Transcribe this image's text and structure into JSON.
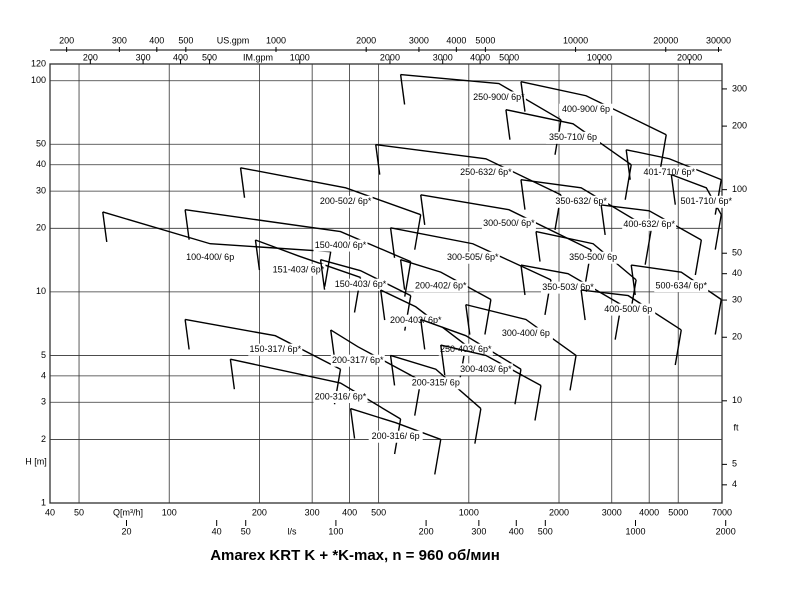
{
  "chart_data": {
    "type": "pump-range",
    "title": "Amarex KRT K + *K-max, n = 960 об/мин",
    "xlabel": "Q[m³/h]",
    "ylabel": "H [m]",
    "log_x": true,
    "log_y": true,
    "grid": true,
    "color": "#000000",
    "xlim": [
      40,
      7000
    ],
    "xticks": [
      40,
      50,
      100,
      200,
      300,
      400,
      500,
      1000,
      2000,
      3000,
      4000,
      5000,
      7000
    ],
    "ylim": [
      1,
      120
    ],
    "yticks": [
      1,
      2,
      3,
      4,
      5,
      10,
      20,
      30,
      40,
      50,
      100,
      120
    ],
    "secondary_axes": [
      {
        "label": "l/s",
        "side": "bottom",
        "lim": [
          11.11,
          1944
        ],
        "ticks": [
          20,
          40,
          50,
          100,
          200,
          300,
          400,
          500,
          1000,
          2000
        ]
      },
      {
        "label": "US.gpm",
        "side": "top",
        "lim": [
          176,
          30820
        ],
        "ticks": [
          200,
          300,
          400,
          500,
          1000,
          2000,
          3000,
          4000,
          5000,
          10000,
          20000,
          30000
        ]
      },
      {
        "label": "IM.gpm",
        "side": "top",
        "lim": [
          146.7,
          25660
        ],
        "ticks": [
          200,
          300,
          400,
          500,
          1000,
          2000,
          3000,
          4000,
          5000,
          10000,
          20000
        ]
      },
      {
        "label": "ft",
        "side": "right",
        "lim": [
          3.281,
          393.7
        ],
        "ticks": [
          4,
          5,
          10,
          20,
          30,
          40,
          50,
          100,
          200,
          300
        ]
      }
    ],
    "series": [
      {
        "name": "100-400/ 6p",
        "x": [
          60,
          137,
          346
        ],
        "values": [
          23.9,
          16.9,
          15.5
        ]
      },
      {
        "name": "150-400/ 6p*",
        "x": [
          113,
          373,
          640
        ],
        "values": [
          24.5,
          19.3,
          13.9
        ]
      },
      {
        "name": "200-502/ 6p*",
        "x": [
          173,
          388,
          691
        ],
        "values": [
          38.7,
          31.1,
          23.2
        ]
      },
      {
        "name": "151-403/ 6p*",
        "x": [
          194,
          270,
          435
        ],
        "values": [
          17.6,
          14.8,
          11.7
        ]
      },
      {
        "name": "150-403/ 6p*",
        "x": [
          320,
          435,
          640
        ],
        "values": [
          14.2,
          12.6,
          9.6
        ]
      },
      {
        "name": "150-317/ 6p*",
        "x": [
          113,
          226,
          373
        ],
        "values": [
          7.4,
          6.2,
          4.3
        ]
      },
      {
        "name": "200-317/ 6p*",
        "x": [
          346,
          426,
          691
        ],
        "values": [
          6.6,
          5.5,
          3.8
        ]
      },
      {
        "name": "200-316/ 6p*",
        "x": [
          160,
          373,
          592
        ],
        "values": [
          4.8,
          3.7,
          2.5
        ]
      },
      {
        "name": "200-316/ 6p",
        "x": [
          403,
          570,
          806
        ],
        "values": [
          2.8,
          2.4,
          2.0
        ]
      },
      {
        "name": "200-403/ 6p*",
        "x": [
          508,
          665,
          977
        ],
        "values": [
          10.2,
          8.5,
          5.6
        ]
      },
      {
        "name": "200-402/ 6p*",
        "x": [
          592,
          806,
          1185
        ],
        "values": [
          14.2,
          12.4,
          9.2
        ]
      },
      {
        "name": "200-315/ 6p",
        "x": [
          548,
          776,
          1097
        ],
        "values": [
          5.0,
          4.3,
          2.8
        ]
      },
      {
        "name": "250-403/ 6p*",
        "x": [
          691,
          977,
          1493
        ],
        "values": [
          7.4,
          6.2,
          4.3
        ]
      },
      {
        "name": "300-403/ 6p*",
        "x": [
          806,
          1140,
          1741
        ],
        "values": [
          5.6,
          5.0,
          3.6
        ]
      },
      {
        "name": "300-505/ 6p*",
        "x": [
          548,
          1031,
          1880
        ],
        "values": [
          20.1,
          16.9,
          11.4
        ]
      },
      {
        "name": "300-400/ 6p",
        "x": [
          977,
          1551,
          2280
        ],
        "values": [
          8.7,
          7.4,
          5.0
        ]
      },
      {
        "name": "300-500/ 6p*",
        "x": [
          691,
          1361,
          2560
        ],
        "values": [
          28.8,
          24.5,
          15.8
        ]
      },
      {
        "name": "250-632/ 6p*",
        "x": [
          489,
          1140,
          2031
        ],
        "values": [
          49.8,
          42.7,
          28.8
        ]
      },
      {
        "name": "250-900/ 6p*",
        "x": [
          592,
          1260,
          2031
        ],
        "values": [
          107,
          97,
          65.3
        ]
      },
      {
        "name": "350-710/ 6p",
        "x": [
          1330,
          2228,
          3484
        ],
        "values": [
          72.9,
          62.5,
          40.0
        ]
      },
      {
        "name": "400-900/ 6p",
        "x": [
          1493,
          2462,
          4560
        ],
        "values": [
          99,
          84.9,
          55.5
        ]
      },
      {
        "name": "350-632/ 6p*",
        "x": [
          1493,
          2371,
          4062
        ],
        "values": [
          34.0,
          31.1,
          19.7
        ]
      },
      {
        "name": "350-500/ 6p",
        "x": [
          1676,
          2600,
          3618
        ],
        "values": [
          19.3,
          16.9,
          11.4
        ]
      },
      {
        "name": "350-503/ 6p*",
        "x": [
          1493,
          2143,
          3225
        ],
        "values": [
          13.4,
          12.2,
          8.7
        ]
      },
      {
        "name": "400-500/ 6p",
        "x": [
          2371,
          3405,
          5118
        ],
        "values": [
          10.2,
          9.6,
          6.6
        ]
      },
      {
        "name": "400-632/ 6p*",
        "x": [
          2765,
          4000,
          5972
        ],
        "values": [
          25.8,
          24.2,
          17.6
        ]
      },
      {
        "name": "401-710/ 6p*",
        "x": [
          3352,
          4667,
          6960
        ],
        "values": [
          47.1,
          42.7,
          34.0
        ]
      },
      {
        "name": "500-634/ 6p*",
        "x": [
          3484,
          5118,
          6960
        ],
        "values": [
          13.4,
          12.4,
          9.2
        ]
      },
      {
        "name": "501-710/ 6p*",
        "x": [
          4741,
          6204,
          6960
        ],
        "values": [
          35.9,
          31.1,
          23.2
        ]
      }
    ]
  }
}
